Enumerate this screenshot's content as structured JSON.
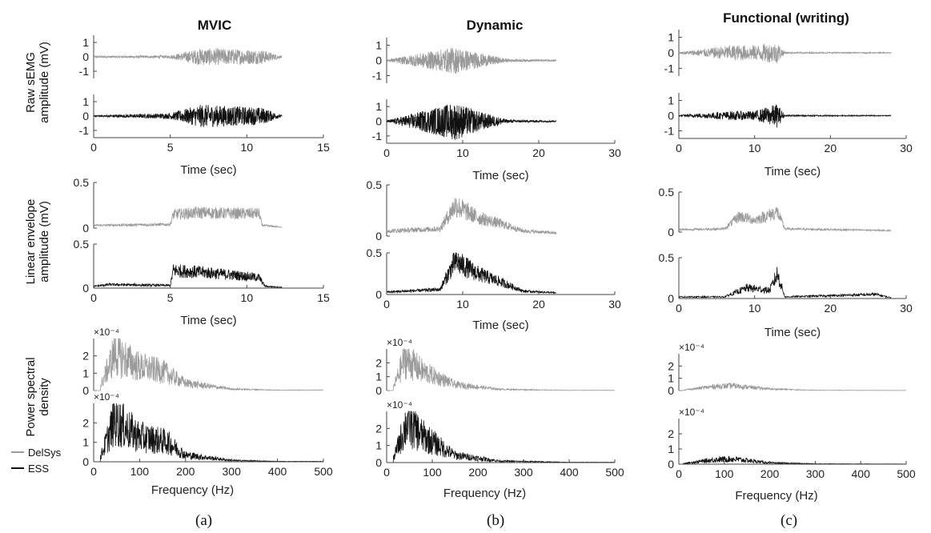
{
  "figure": {
    "columns": [
      {
        "title": "MVIC",
        "panel_label": "(a)"
      },
      {
        "title": "Dynamic",
        "panel_label": "(b)"
      },
      {
        "title": "Functional (writing)",
        "panel_label": "(c)"
      }
    ],
    "row_labels": [
      [
        "Raw sEMG",
        "amplitude (mV)"
      ],
      [
        "Linear envelope",
        "amplitude (mV)"
      ],
      [
        "Power spectral",
        "density"
      ]
    ],
    "legend": [
      {
        "label": "DelSys",
        "color": "#9a9a9a"
      },
      {
        "label": "ESS",
        "color": "#111111"
      }
    ],
    "colors": {
      "delsys": "#9a9a9a",
      "ess": "#111111"
    }
  },
  "chart_data": [
    {
      "column": "MVIC",
      "row": "raw",
      "type": "line",
      "xlabel": "Time (sec)",
      "xlim": [
        0,
        15
      ],
      "xticks": [
        0,
        5,
        10,
        15
      ],
      "ylim": [
        -1.5,
        1.5
      ],
      "yticks": [
        -1,
        0,
        1
      ],
      "active_range": [
        5,
        11
      ],
      "signal_end": 12.3,
      "series": [
        {
          "values": [
            {
              "x": 0,
              "y": 0.05
            },
            {
              "x": 5,
              "y": 0.1
            },
            {
              "x": 7,
              "y": 0.6
            },
            {
              "x": 9,
              "y": 0.55
            },
            {
              "x": 11,
              "y": 0.5
            },
            {
              "x": 12.3,
              "y": 0.05
            }
          ]
        },
        {
          "values": [
            {
              "x": 0,
              "y": 0.05
            },
            {
              "x": 5,
              "y": 0.2
            },
            {
              "x": 7,
              "y": 0.8
            },
            {
              "x": 9,
              "y": 0.7
            },
            {
              "x": 11,
              "y": 0.6
            },
            {
              "x": 12.3,
              "y": 0.05
            }
          ]
        }
      ]
    },
    {
      "column": "MVIC",
      "row": "envelope",
      "type": "line",
      "xlabel": "Time (sec)",
      "xlim": [
        0,
        15
      ],
      "xticks": [
        0,
        5,
        10,
        15
      ],
      "ylim": [
        0,
        0.5
      ],
      "yticks": [
        0,
        0.5
      ],
      "series": [
        {
          "values": [
            {
              "x": 0,
              "y": 0.03
            },
            {
              "x": 5,
              "y": 0.04
            },
            {
              "x": 5.2,
              "y": 0.15
            },
            {
              "x": 7,
              "y": 0.17
            },
            {
              "x": 9,
              "y": 0.16
            },
            {
              "x": 10.8,
              "y": 0.16
            },
            {
              "x": 11,
              "y": 0.03
            },
            {
              "x": 12.3,
              "y": 0.01
            }
          ]
        },
        {
          "values": [
            {
              "x": 0,
              "y": 0.02
            },
            {
              "x": 1,
              "y": 0.04
            },
            {
              "x": 5,
              "y": 0.03
            },
            {
              "x": 5.2,
              "y": 0.2
            },
            {
              "x": 7,
              "y": 0.18
            },
            {
              "x": 9,
              "y": 0.15
            },
            {
              "x": 10.8,
              "y": 0.12
            },
            {
              "x": 11.2,
              "y": 0.02
            },
            {
              "x": 12.3,
              "y": 0.01
            }
          ]
        }
      ]
    },
    {
      "column": "MVIC",
      "row": "psd",
      "type": "line",
      "xlabel": "Frequency (Hz)",
      "xlim": [
        0,
        500
      ],
      "xticks": [
        0,
        100,
        200,
        300,
        400,
        500
      ],
      "ylim": [
        0,
        3
      ],
      "yticks": [
        0,
        1,
        2
      ],
      "exponent": "×10⁻⁴",
      "series": [
        {
          "values": [
            {
              "x": 15,
              "y": 0.3
            },
            {
              "x": 45,
              "y": 2.5
            },
            {
              "x": 100,
              "y": 1.6
            },
            {
              "x": 150,
              "y": 1.3
            },
            {
              "x": 200,
              "y": 0.5
            },
            {
              "x": 300,
              "y": 0.1
            },
            {
              "x": 400,
              "y": 0.03
            }
          ]
        },
        {
          "values": [
            {
              "x": 15,
              "y": 0.3
            },
            {
              "x": 45,
              "y": 2.5
            },
            {
              "x": 100,
              "y": 1.5
            },
            {
              "x": 160,
              "y": 1.2
            },
            {
              "x": 200,
              "y": 0.4
            },
            {
              "x": 300,
              "y": 0.08
            },
            {
              "x": 400,
              "y": 0.02
            }
          ]
        }
      ]
    },
    {
      "column": "Dynamic",
      "row": "raw",
      "type": "line",
      "xlabel": "Time (sec)",
      "xlim": [
        0,
        30
      ],
      "xticks": [
        0,
        10,
        20,
        30
      ],
      "ylim": [
        -1.5,
        1.5
      ],
      "yticks": [
        -1,
        0,
        1
      ],
      "active_range": [
        6,
        16
      ],
      "signal_end": 22.3,
      "series": [
        {
          "values": [
            {
              "x": 0,
              "y": 0.05
            },
            {
              "x": 9,
              "y": 0.9
            },
            {
              "x": 12,
              "y": 0.5
            },
            {
              "x": 16,
              "y": 0.1
            },
            {
              "x": 22.3,
              "y": 0.05
            }
          ]
        },
        {
          "values": [
            {
              "x": 0,
              "y": 0.05
            },
            {
              "x": 9,
              "y": 1.3
            },
            {
              "x": 12,
              "y": 0.7
            },
            {
              "x": 16,
              "y": 0.1
            },
            {
              "x": 22.3,
              "y": 0.05
            }
          ]
        }
      ]
    },
    {
      "column": "Dynamic",
      "row": "envelope",
      "type": "line",
      "xlabel": "Time (sec)",
      "xlim": [
        0,
        30
      ],
      "xticks": [
        0,
        10,
        20,
        30
      ],
      "ylim": [
        0,
        0.5
      ],
      "yticks": [
        0,
        0.5
      ],
      "series": [
        {
          "values": [
            {
              "x": 0,
              "y": 0.05
            },
            {
              "x": 7,
              "y": 0.07
            },
            {
              "x": 9,
              "y": 0.3
            },
            {
              "x": 12,
              "y": 0.18
            },
            {
              "x": 15,
              "y": 0.12
            },
            {
              "x": 18,
              "y": 0.05
            },
            {
              "x": 22.3,
              "y": 0.03
            }
          ]
        },
        {
          "values": [
            {
              "x": 0,
              "y": 0.03
            },
            {
              "x": 7,
              "y": 0.06
            },
            {
              "x": 9,
              "y": 0.4
            },
            {
              "x": 12,
              "y": 0.25
            },
            {
              "x": 15,
              "y": 0.15
            },
            {
              "x": 18,
              "y": 0.04
            },
            {
              "x": 22.3,
              "y": 0.02
            }
          ]
        }
      ]
    },
    {
      "column": "Dynamic",
      "row": "psd",
      "type": "line",
      "xlabel": "Frequency (Hz)",
      "xlim": [
        0,
        500
      ],
      "xticks": [
        0,
        100,
        200,
        300,
        400,
        500
      ],
      "ylim": [
        0,
        3
      ],
      "yticks": [
        0,
        1,
        2
      ],
      "exponent": "×10⁻⁴",
      "series": [
        {
          "values": [
            {
              "x": 15,
              "y": 0.3
            },
            {
              "x": 40,
              "y": 2.7
            },
            {
              "x": 80,
              "y": 1.6
            },
            {
              "x": 150,
              "y": 0.5
            },
            {
              "x": 250,
              "y": 0.1
            },
            {
              "x": 400,
              "y": 0.02
            }
          ]
        },
        {
          "values": [
            {
              "x": 15,
              "y": 0.3
            },
            {
              "x": 45,
              "y": 2.8
            },
            {
              "x": 80,
              "y": 1.8
            },
            {
              "x": 150,
              "y": 0.5
            },
            {
              "x": 250,
              "y": 0.1
            },
            {
              "x": 400,
              "y": 0.02
            }
          ]
        }
      ]
    },
    {
      "column": "Functional (writing)",
      "row": "raw",
      "type": "line",
      "xlabel": "Time (sec)",
      "xlim": [
        0,
        30
      ],
      "xticks": [
        0,
        10,
        20,
        30
      ],
      "ylim": [
        -1.5,
        1.5
      ],
      "yticks": [
        -1,
        0,
        1
      ],
      "active_range": [
        6,
        13.5
      ],
      "signal_end": 28,
      "series": [
        {
          "values": [
            {
              "x": 0,
              "y": 0.05
            },
            {
              "x": 7,
              "y": 0.5
            },
            {
              "x": 10,
              "y": 0.5
            },
            {
              "x": 13,
              "y": 0.7
            },
            {
              "x": 14,
              "y": 0.05
            },
            {
              "x": 28,
              "y": 0.03
            }
          ]
        },
        {
          "values": [
            {
              "x": 0,
              "y": 0.05
            },
            {
              "x": 7,
              "y": 0.3
            },
            {
              "x": 10,
              "y": 0.3
            },
            {
              "x": 13,
              "y": 0.8
            },
            {
              "x": 14,
              "y": 0.05
            },
            {
              "x": 28,
              "y": 0.03
            }
          ]
        }
      ]
    },
    {
      "column": "Functional (writing)",
      "row": "envelope",
      "type": "line",
      "xlabel": "Time (sec)",
      "xlim": [
        0,
        30
      ],
      "xticks": [
        0,
        10,
        20,
        30
      ],
      "ylim": [
        0,
        0.5
      ],
      "yticks": [
        0,
        0.5
      ],
      "series": [
        {
          "values": [
            {
              "x": 0,
              "y": 0.03
            },
            {
              "x": 6,
              "y": 0.04
            },
            {
              "x": 8,
              "y": 0.2
            },
            {
              "x": 10,
              "y": 0.15
            },
            {
              "x": 13,
              "y": 0.25
            },
            {
              "x": 14,
              "y": 0.04
            },
            {
              "x": 28,
              "y": 0.02
            }
          ]
        },
        {
          "values": [
            {
              "x": 0,
              "y": 0.02
            },
            {
              "x": 6,
              "y": 0.02
            },
            {
              "x": 9,
              "y": 0.13
            },
            {
              "x": 12,
              "y": 0.1
            },
            {
              "x": 13,
              "y": 0.3
            },
            {
              "x": 14,
              "y": 0.02
            },
            {
              "x": 26,
              "y": 0.05
            },
            {
              "x": 28,
              "y": 0.01
            }
          ]
        }
      ]
    },
    {
      "column": "Functional (writing)",
      "row": "psd",
      "type": "line",
      "xlabel": "Frequency (Hz)",
      "xlim": [
        0,
        500
      ],
      "xticks": [
        0,
        100,
        200,
        300,
        400,
        500
      ],
      "ylim": [
        0,
        3
      ],
      "yticks": [
        0,
        1,
        2
      ],
      "exponent": "×10⁻⁴",
      "series": [
        {
          "values": [
            {
              "x": 10,
              "y": 0.05
            },
            {
              "x": 80,
              "y": 0.4
            },
            {
              "x": 120,
              "y": 0.45
            },
            {
              "x": 200,
              "y": 0.15
            },
            {
              "x": 300,
              "y": 0.03
            },
            {
              "x": 500,
              "y": 0.01
            }
          ]
        },
        {
          "values": [
            {
              "x": 10,
              "y": 0.05
            },
            {
              "x": 80,
              "y": 0.35
            },
            {
              "x": 120,
              "y": 0.4
            },
            {
              "x": 200,
              "y": 0.1
            },
            {
              "x": 300,
              "y": 0.03
            },
            {
              "x": 500,
              "y": 0.01
            }
          ]
        }
      ]
    }
  ]
}
